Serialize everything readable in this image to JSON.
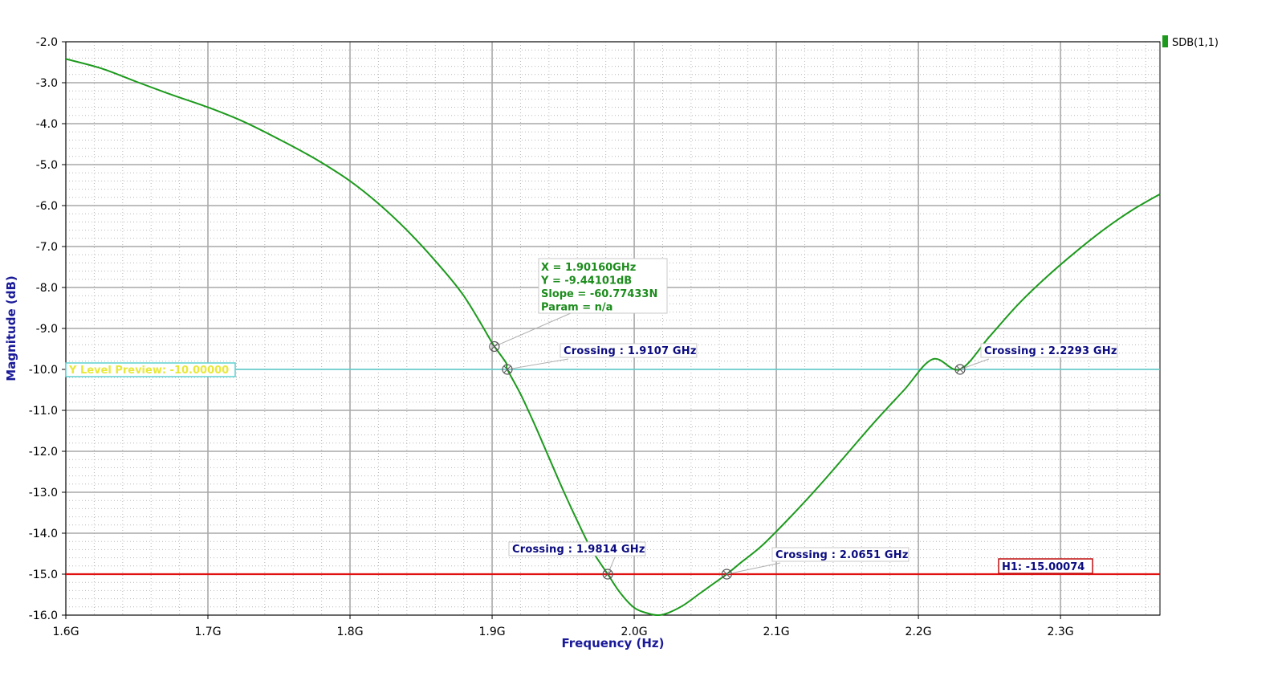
{
  "chart_data": {
    "type": "line",
    "xlabel": "Frequency (Hz)",
    "ylabel": "Magnitude (dB)",
    "xlim": [
      1.6,
      2.37
    ],
    "ylim": [
      -16.0,
      -2.0
    ],
    "x_ticks": [
      {
        "value": 1.6,
        "label": "1.6G"
      },
      {
        "value": 1.7,
        "label": "1.7G"
      },
      {
        "value": 1.8,
        "label": "1.8G"
      },
      {
        "value": 1.9,
        "label": "1.9G"
      },
      {
        "value": 2.0,
        "label": "2.0G"
      },
      {
        "value": 2.1,
        "label": "2.1G"
      },
      {
        "value": 2.2,
        "label": "2.2G"
      },
      {
        "value": 2.3,
        "label": "2.3G"
      }
    ],
    "y_ticks": [
      {
        "value": -2,
        "label": "-2.0"
      },
      {
        "value": -3,
        "label": "-3.0"
      },
      {
        "value": -4,
        "label": "-4.0"
      },
      {
        "value": -5,
        "label": "-5.0"
      },
      {
        "value": -6,
        "label": "-6.0"
      },
      {
        "value": -7,
        "label": "-7.0"
      },
      {
        "value": -8,
        "label": "-8.0"
      },
      {
        "value": -9,
        "label": "-9.0"
      },
      {
        "value": -10,
        "label": "-10.0"
      },
      {
        "value": -11,
        "label": "-11.0"
      },
      {
        "value": -12,
        "label": "-12.0"
      },
      {
        "value": -13,
        "label": "-13.0"
      },
      {
        "value": -14,
        "label": "-14.0"
      },
      {
        "value": -15,
        "label": "-15.0"
      },
      {
        "value": -16,
        "label": "-16.0"
      }
    ],
    "grid": true,
    "minor_grid": true,
    "legend_position": "top-right",
    "series": [
      {
        "name": "SDB(1,1)",
        "color": "#1d9a1d",
        "x": [
          1.6,
          1.625,
          1.65,
          1.675,
          1.7,
          1.725,
          1.75,
          1.775,
          1.8,
          1.82,
          1.84,
          1.86,
          1.88,
          1.9,
          1.9016,
          1.91,
          1.9107,
          1.92,
          1.93,
          1.94,
          1.95,
          1.96,
          1.97,
          1.9814,
          1.99,
          2.0,
          2.01,
          2.0175,
          2.025,
          2.035,
          2.045,
          2.055,
          2.0651,
          2.075,
          2.09,
          2.11,
          2.13,
          2.15,
          2.17,
          2.19,
          2.21,
          2.2293,
          2.25,
          2.27,
          2.29,
          2.31,
          2.33,
          2.35,
          2.37
        ],
        "y": [
          -2.42,
          -2.65,
          -2.98,
          -3.3,
          -3.6,
          -3.95,
          -4.38,
          -4.85,
          -5.4,
          -5.95,
          -6.6,
          -7.35,
          -8.2,
          -9.35,
          -9.441,
          -9.85,
          -10.0,
          -10.6,
          -11.35,
          -12.15,
          -12.95,
          -13.7,
          -14.4,
          -15.0,
          -15.45,
          -15.82,
          -15.96,
          -16.0,
          -15.93,
          -15.75,
          -15.5,
          -15.25,
          -15.0,
          -14.72,
          -14.3,
          -13.6,
          -12.85,
          -12.05,
          -11.25,
          -10.5,
          -9.75,
          -10.0,
          -9.2,
          -8.42,
          -7.75,
          -7.15,
          -6.6,
          -6.12,
          -5.72
        ]
      }
    ],
    "horizontal_lines": [
      {
        "name": "Y Level Preview",
        "y": -10.0,
        "color": "#5fd0d0",
        "label": "Y Level Preview: -10.00000"
      },
      {
        "name": "H1",
        "y": -15.0,
        "color": "#e01010",
        "label": "H1: -15.00074"
      }
    ],
    "crossings": [
      {
        "x": 1.9107,
        "y": -10.0,
        "label": "Crossing : 1.9107 GHz"
      },
      {
        "x": 2.2293,
        "y": -10.0,
        "label": "Crossing : 2.2293 GHz"
      },
      {
        "x": 1.9814,
        "y": -15.0,
        "label": "Crossing : 1.9814 GHz"
      },
      {
        "x": 2.0651,
        "y": -15.0,
        "label": "Crossing : 2.0651 GHz"
      }
    ],
    "point_marker": {
      "x": 1.9016,
      "y": -9.441,
      "lines": [
        "X = 1.90160GHz",
        "Y = -9.44101dB",
        "Slope = -60.77433N",
        "Param = n/a"
      ]
    }
  }
}
